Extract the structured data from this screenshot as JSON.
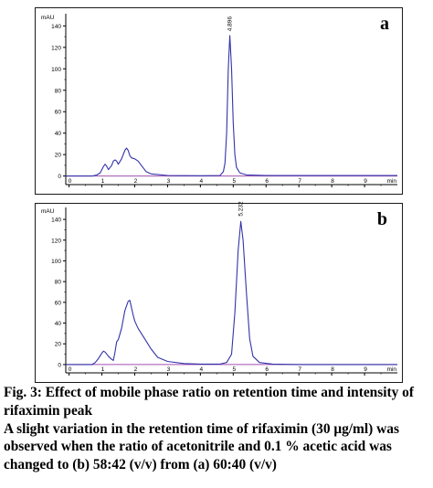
{
  "figure": {
    "caption_title": "Fig. 3: Effect of mobile phase ratio on retention time and intensity of rifaximin peak",
    "caption_body": "A slight variation in the retention time of rifaximin (30 μg/ml) was observed when the ratio of acetonitrile and 0.1 % acetic acid was changed to (b) 58:42 (v/v) from (a) 60:40 (v/v)"
  },
  "chart_data": [
    {
      "type": "line",
      "panel_label": "a",
      "ylabel": "mAU",
      "xlabel": "min",
      "xlim": [
        -0.1,
        10.0
      ],
      "ylim": [
        -8,
        148
      ],
      "xticks": [
        0,
        1,
        2,
        3,
        4,
        5,
        6,
        7,
        8,
        9
      ],
      "yticks": [
        0,
        20,
        40,
        60,
        80,
        100,
        120,
        140
      ],
      "peak_labels": [
        {
          "x": 4.896,
          "y": 135,
          "text": "4.896"
        }
      ],
      "series": [
        {
          "color": "#3333aa",
          "x": [
            -0.1,
            0.0,
            0.7,
            0.85,
            0.95,
            1.0,
            1.05,
            1.1,
            1.15,
            1.2,
            1.3,
            1.35,
            1.4,
            1.45,
            1.5,
            1.6,
            1.7,
            1.75,
            1.8,
            1.85,
            1.9,
            2.0,
            2.1,
            2.2,
            2.35,
            2.5,
            3.0,
            4.0,
            4.6,
            4.7,
            4.75,
            4.8,
            4.85,
            4.896,
            4.95,
            5.0,
            5.05,
            5.1,
            5.2,
            5.4,
            6.0,
            7.0,
            8.0,
            9.0,
            10.0
          ],
          "y": [
            0,
            0,
            0,
            1,
            3,
            6,
            9,
            11,
            9,
            6,
            10,
            14,
            15,
            14,
            11,
            16,
            24,
            26,
            24,
            19,
            17,
            16,
            14,
            10,
            4,
            2,
            0.5,
            0.3,
            0.5,
            4,
            12,
            40,
            100,
            131,
            100,
            50,
            20,
            8,
            3,
            1,
            0.5,
            0.5,
            0.5,
            0.5,
            0.5
          ]
        }
      ]
    },
    {
      "type": "line",
      "panel_label": "b",
      "ylabel": "mAU",
      "xlabel": "min",
      "xlim": [
        -0.1,
        10.0
      ],
      "ylim": [
        -8,
        148
      ],
      "xticks": [
        0,
        1,
        2,
        3,
        4,
        5,
        6,
        7,
        8,
        9
      ],
      "yticks": [
        0,
        20,
        40,
        60,
        80,
        100,
        120,
        140
      ],
      "peak_labels": [
        {
          "x": 5.232,
          "y": 143,
          "text": "5.232"
        }
      ],
      "series": [
        {
          "color": "#3333aa",
          "x": [
            -0.1,
            0.0,
            0.7,
            0.8,
            0.9,
            1.0,
            1.05,
            1.1,
            1.2,
            1.3,
            1.35,
            1.4,
            1.45,
            1.5,
            1.6,
            1.7,
            1.8,
            1.85,
            1.9,
            1.95,
            2.0,
            2.1,
            2.3,
            2.5,
            2.7,
            3.0,
            3.5,
            4.0,
            4.6,
            4.8,
            4.95,
            5.05,
            5.15,
            5.232,
            5.3,
            5.4,
            5.5,
            5.6,
            5.8,
            6.2,
            7.0,
            8.0,
            9.0,
            10.0
          ],
          "y": [
            0,
            0,
            0,
            2,
            6,
            11,
            13,
            12,
            8,
            5,
            4,
            12,
            22,
            24,
            35,
            52,
            61,
            62,
            55,
            48,
            42,
            35,
            25,
            15,
            7,
            3,
            1,
            0.5,
            0.5,
            2,
            10,
            50,
            110,
            138,
            120,
            70,
            25,
            8,
            2,
            0.5,
            0,
            0,
            0,
            0
          ]
        }
      ]
    }
  ]
}
